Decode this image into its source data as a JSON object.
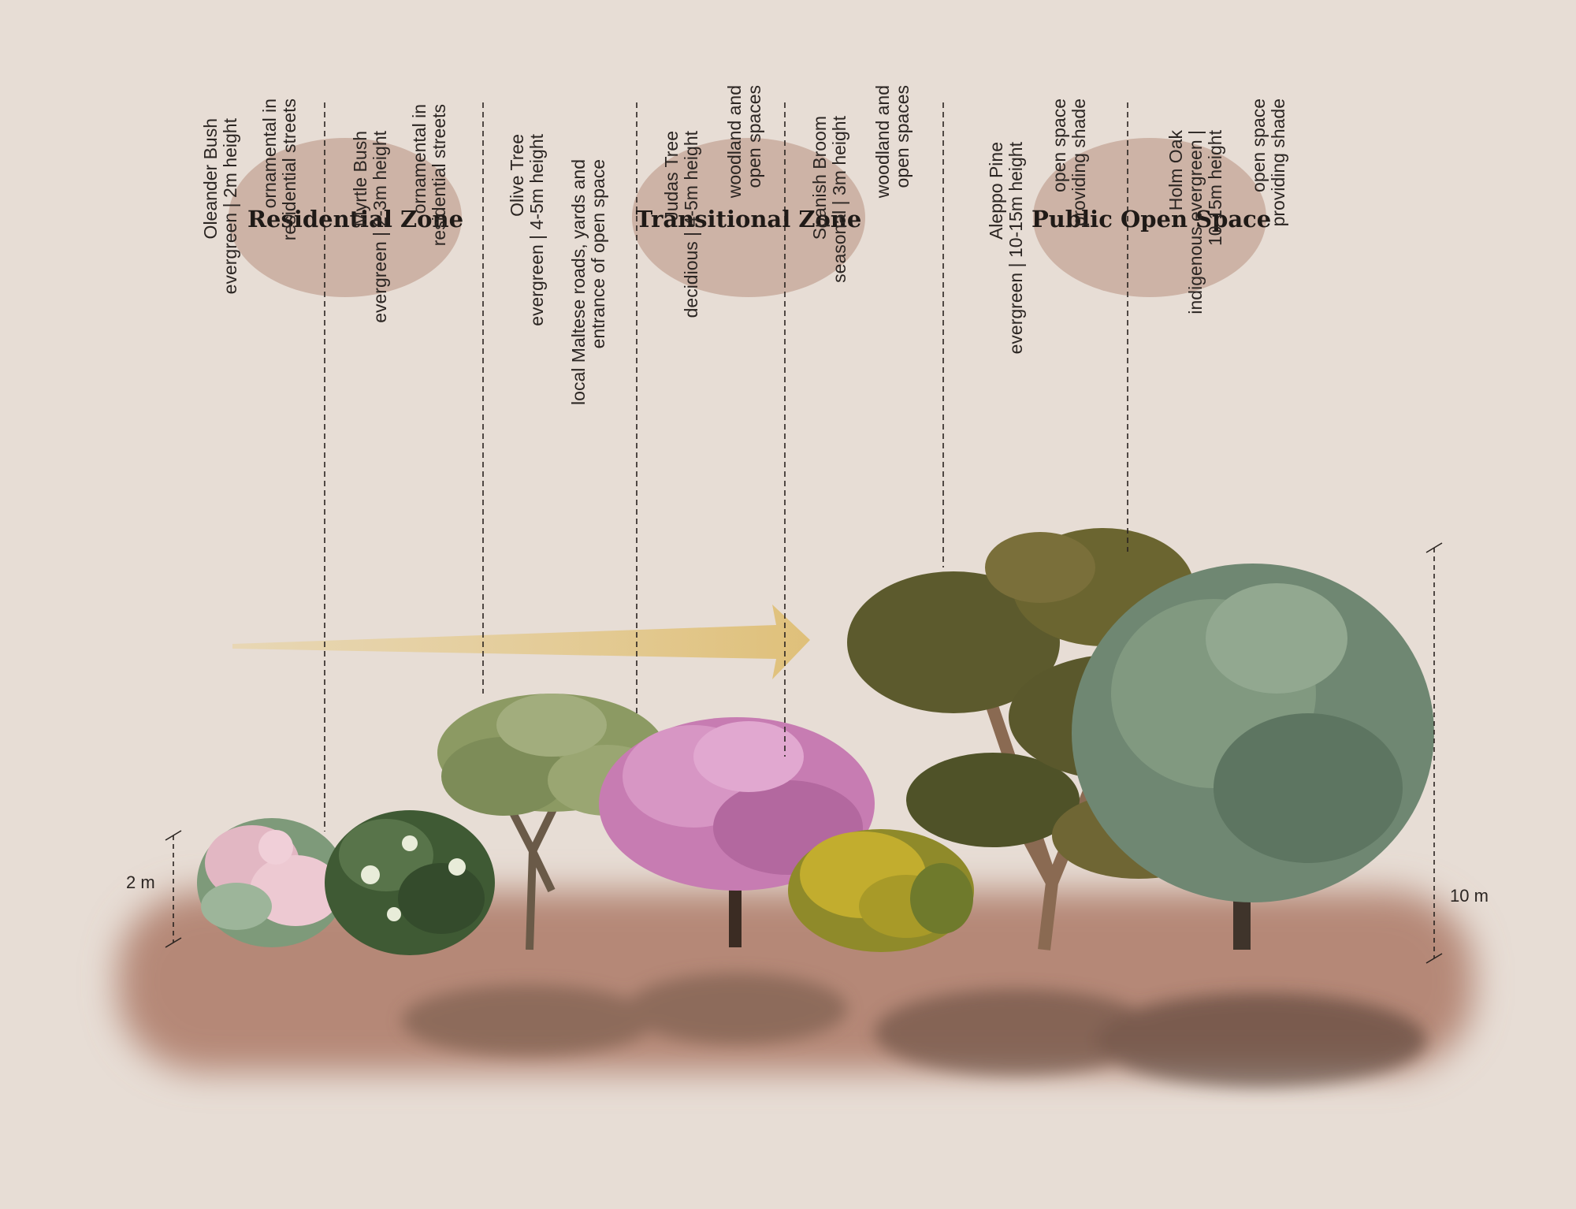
{
  "colors": {
    "background": "#e7ddd5",
    "zone_ellipse": "#cdb3a6",
    "ground": "#b58877",
    "arrow": "#e2c586",
    "oleander": "#e9b7c3",
    "myrtle": "#3f5a34",
    "olive": "#8c9a63",
    "judas": "#c77cb2",
    "broom": "#b9a52b",
    "pine": "#5f5a2e",
    "oak": "#6f8772"
  },
  "zones": [
    {
      "label": "Residential Zone"
    },
    {
      "label": "Transitional Zone"
    },
    {
      "label": "Public Open Space"
    }
  ],
  "plants": [
    {
      "name": "Oleander Bush",
      "spec": "evergreen | 2m height",
      "use_line1": "ornamental in",
      "use_line2": "residential streets"
    },
    {
      "name": "Myrtle Bush",
      "spec": "evergreen | 2-3m height",
      "use_line1": "ornamental in",
      "use_line2": "residential streets"
    },
    {
      "name": "Olive Tree",
      "spec": "evergreen | 4-5m height",
      "use_line1": "local Maltese roads, yards and",
      "use_line2": "entrance of open space"
    },
    {
      "name": "Judas Tree",
      "spec": "decidious | 4-5m height",
      "use_line1": "woodland and",
      "use_line2": "open spaces"
    },
    {
      "name": "Spanish Broom",
      "spec": "seasonal | 3m height",
      "use_line1": "woodland and",
      "use_line2": "open spaces"
    },
    {
      "name": "Aleppo Pine",
      "spec": "evergreen | 10-15m height",
      "use_line1": "open space",
      "use_line2": "providing shade"
    },
    {
      "name": "Holm Oak",
      "spec": "indigenous evergreen |",
      "spec_line2": "10-15m height",
      "use_line1": "open space",
      "use_line2": "providing shade"
    }
  ],
  "scales": {
    "left": "2 m",
    "right": "10 m"
  }
}
